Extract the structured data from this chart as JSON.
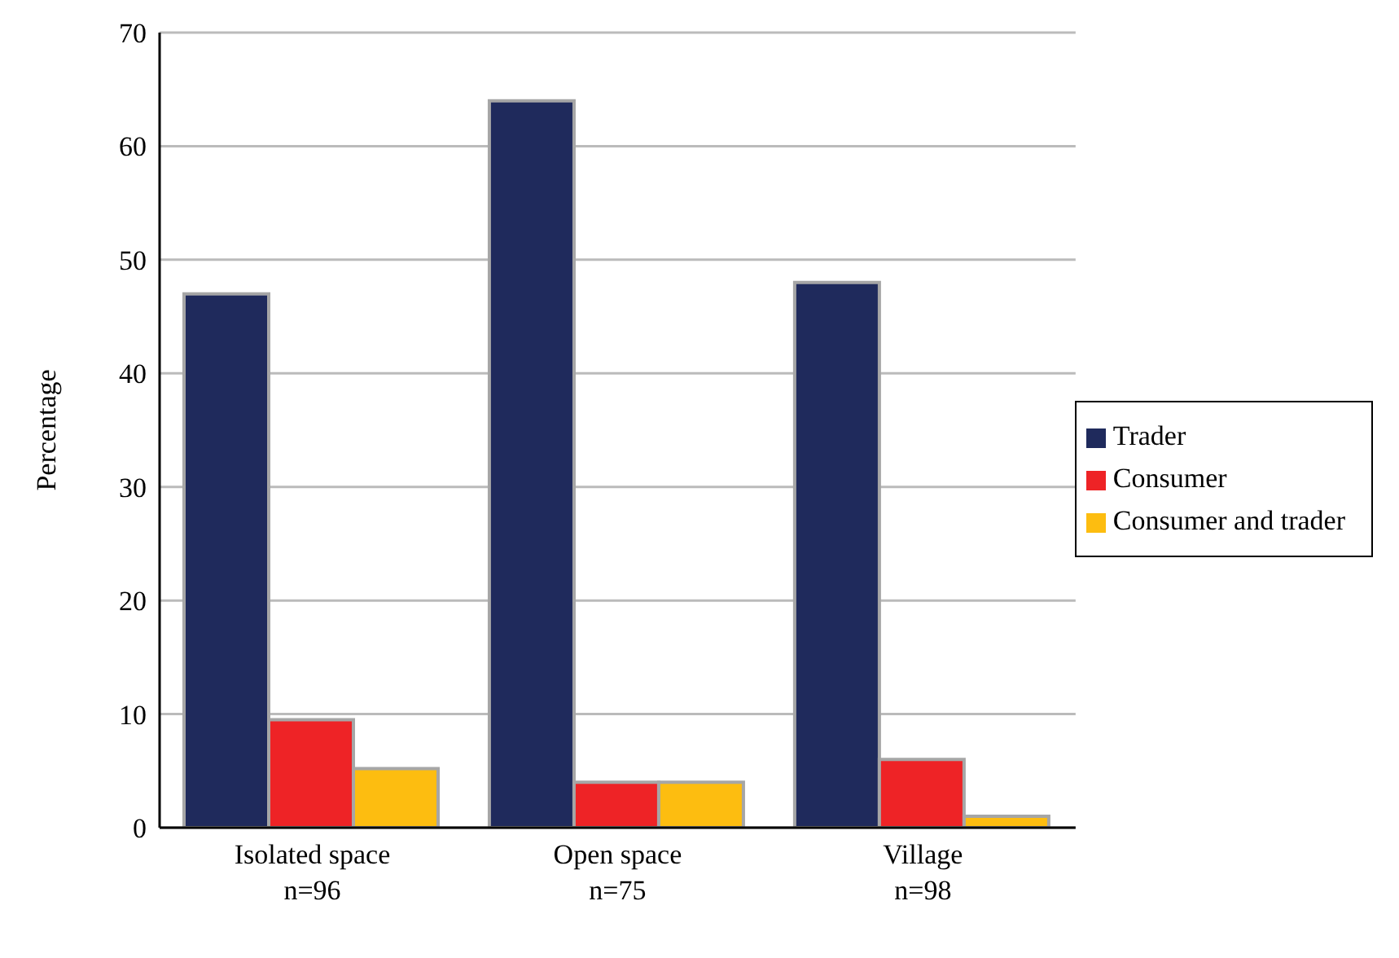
{
  "chart_data": {
    "type": "bar",
    "ylabel": "Percentage",
    "categories": [
      "Isolated space\nn=96",
      "Open space\nn=75",
      "Village\nn=98"
    ],
    "series": [
      {
        "name": "Trader",
        "color": "#1f2a5c",
        "values": [
          47,
          64,
          48
        ]
      },
      {
        "name": "Consumer",
        "color": "#ee2326",
        "values": [
          9.5,
          4,
          6
        ]
      },
      {
        "name": "Consumer and trader",
        "color": "#fdbd10",
        "values": [
          5.2,
          4,
          1
        ]
      }
    ],
    "ylim": [
      0,
      70
    ],
    "yticks": [
      0,
      10,
      20,
      30,
      40,
      50,
      60,
      70
    ],
    "grid": "y",
    "legend": "right"
  }
}
